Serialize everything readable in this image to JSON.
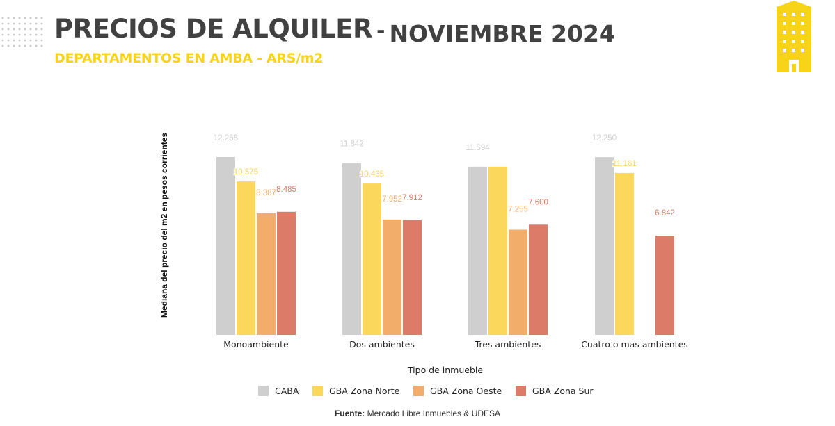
{
  "header": {
    "title": "PRECIOS DE ALQUILER",
    "separator": "-",
    "month": "NOVIEMBRE 2024",
    "subtitle": "DEPARTAMENTOS EN AMBA - ARS/m2"
  },
  "colors": {
    "title": "#414141",
    "accent": "#f7d417"
  },
  "source": {
    "label": "Fuente:",
    "text": "Mercado Libre Inmuebles & UDESA"
  },
  "chart_data": {
    "type": "bar",
    "categories": [
      "Monoambiente",
      "Dos ambientes",
      "Tres ambientes",
      "Cuatro o mas ambientes"
    ],
    "series": [
      {
        "name": "CABA",
        "color": "#cfcfcf",
        "values": [
          12258,
          11842,
          11594,
          12250
        ],
        "labels": [
          "12.258",
          "11.842",
          "11.594",
          "12.250"
        ]
      },
      {
        "name": "GBA Zona Norte",
        "color": "#fbd75c",
        "values": [
          10575,
          10435,
          11594,
          11161
        ],
        "labels": [
          "10.575",
          "10.435",
          "",
          "11.161"
        ]
      },
      {
        "name": "GBA Zona Oeste",
        "color": "#f3ad6b",
        "values": [
          8387,
          7952,
          7255,
          null
        ],
        "labels": [
          "8.387",
          "7.952",
          "7.255",
          ""
        ]
      },
      {
        "name": "GBA Zona Sur",
        "color": "#dc7b68",
        "values": [
          8485,
          7912,
          7600,
          6842
        ],
        "labels": [
          "8.485",
          "7.912",
          "7.600",
          "6.842"
        ]
      }
    ],
    "xlabel": "Tipo de inmueble",
    "ylabel": "Mediana del precio del m2 en pesos corrientes",
    "legend_position": "bottom"
  }
}
